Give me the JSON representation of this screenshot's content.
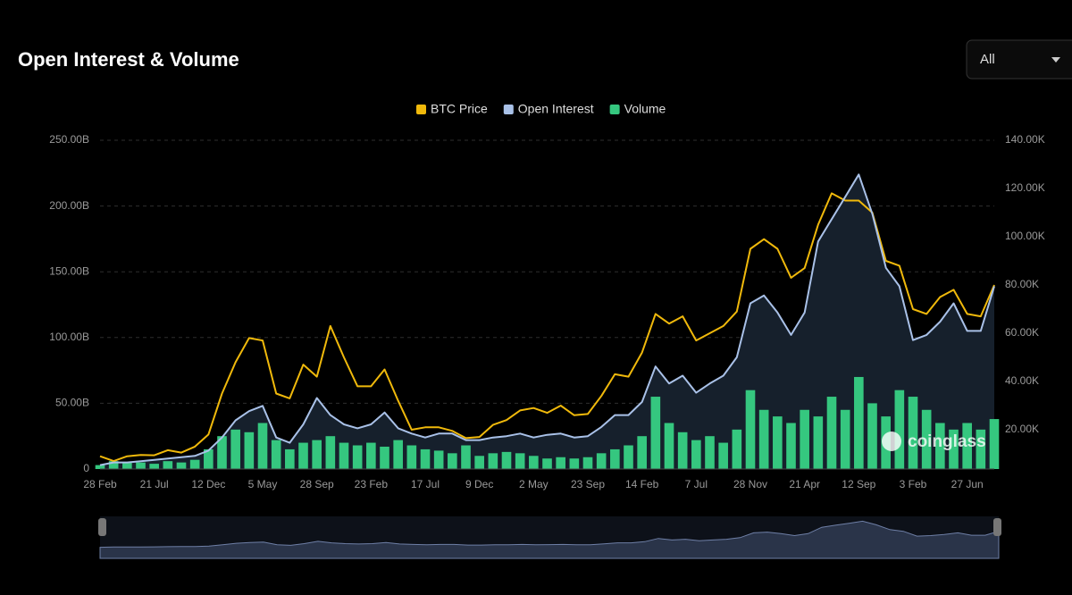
{
  "chart_data": {
    "type": "line",
    "title": "Open Interest & Volume",
    "range_selector": "All",
    "watermark": "coinglass",
    "categories": [
      "28 Feb",
      null,
      null,
      null,
      "21 Jul",
      null,
      null,
      null,
      "12 Dec",
      null,
      null,
      null,
      "5 May",
      null,
      null,
      null,
      "28 Sep",
      null,
      null,
      null,
      "23 Feb",
      null,
      null,
      null,
      "17 Jul",
      null,
      null,
      null,
      "9 Dec",
      null,
      null,
      null,
      "2 May",
      null,
      null,
      null,
      "23 Sep",
      null,
      null,
      null,
      "14 Feb",
      null,
      null,
      null,
      "7 Jul",
      null,
      null,
      null,
      "28 Nov",
      null,
      null,
      null,
      "21 Apr",
      null,
      null,
      null,
      "12 Sep",
      null,
      null,
      null,
      "3 Feb",
      null,
      null,
      null,
      "27 Jun",
      null,
      null
    ],
    "series": [
      {
        "name": "BTC Price",
        "type": "line",
        "axis": "y2",
        "color": "#f0b90b",
        "values": [
          9000,
          7000,
          9000,
          9500,
          9400,
          11500,
          10500,
          13000,
          18000,
          35000,
          48000,
          58000,
          57000,
          35000,
          33000,
          47000,
          42000,
          63000,
          50000,
          38000,
          38000,
          45000,
          32000,
          20000,
          21000,
          21000,
          19500,
          16500,
          17000,
          22000,
          24000,
          28000,
          29000,
          27000,
          30000,
          26000,
          26500,
          34000,
          43000,
          42000,
          52000,
          68000,
          64000,
          67000,
          57000,
          60000,
          63000,
          69000,
          95000,
          99000,
          95000,
          83000,
          87000,
          105000,
          118000,
          115000,
          115000,
          110000,
          90000,
          88000,
          70000,
          68000,
          75000,
          78000,
          68000,
          67000,
          80000
        ]
      },
      {
        "name": "Open Interest",
        "type": "line",
        "color": "#a9c1e8",
        "values": [
          3,
          5,
          5,
          6,
          7,
          8,
          9,
          10,
          14,
          24,
          37,
          44,
          48,
          24,
          20,
          34,
          54,
          41,
          34,
          31,
          34,
          43,
          31,
          27,
          24,
          27,
          27,
          22,
          22,
          24,
          25,
          27,
          24,
          26,
          27,
          24,
          25,
          32,
          41,
          41,
          51,
          78,
          65,
          71,
          58,
          65,
          71,
          85,
          126,
          132,
          119,
          102,
          119,
          173,
          190,
          207,
          224,
          194,
          153,
          139,
          98,
          102,
          112,
          126,
          105,
          105,
          139
        ]
      },
      {
        "name": "Volume",
        "type": "bar",
        "color": "#35c77f",
        "values": [
          3,
          6,
          5,
          5,
          4,
          6,
          5,
          7,
          15,
          25,
          30,
          28,
          35,
          22,
          15,
          20,
          22,
          25,
          20,
          18,
          20,
          17,
          22,
          18,
          15,
          14,
          12,
          18,
          10,
          12,
          13,
          12,
          10,
          8,
          9,
          8,
          9,
          12,
          15,
          18,
          25,
          55,
          35,
          28,
          22,
          25,
          20,
          30,
          60,
          45,
          40,
          35,
          45,
          40,
          55,
          45,
          70,
          50,
          40,
          60,
          55,
          45,
          35,
          30,
          35,
          30,
          38
        ]
      }
    ],
    "ylim": [
      0,
      250
    ],
    "yticks": [
      {
        "value": 0,
        "label": "0"
      },
      {
        "value": 50,
        "label": "50.00B"
      },
      {
        "value": 100,
        "label": "100.00B"
      },
      {
        "value": 150,
        "label": "150.00B"
      },
      {
        "value": 200,
        "label": "200.00B"
      },
      {
        "value": 250,
        "label": "250.00B"
      }
    ],
    "y2lim": [
      3700,
      140000
    ],
    "y2ticks": [
      {
        "value": 20000,
        "label": "20.00K"
      },
      {
        "value": 40000,
        "label": "40.00K"
      },
      {
        "value": 60000,
        "label": "60.00K"
      },
      {
        "value": 80000,
        "label": "80.00K"
      },
      {
        "value": 100000,
        "label": "100.00K"
      },
      {
        "value": 120000,
        "label": "120.00K"
      },
      {
        "value": 140000,
        "label": "140.00K"
      }
    ],
    "grid": true
  }
}
